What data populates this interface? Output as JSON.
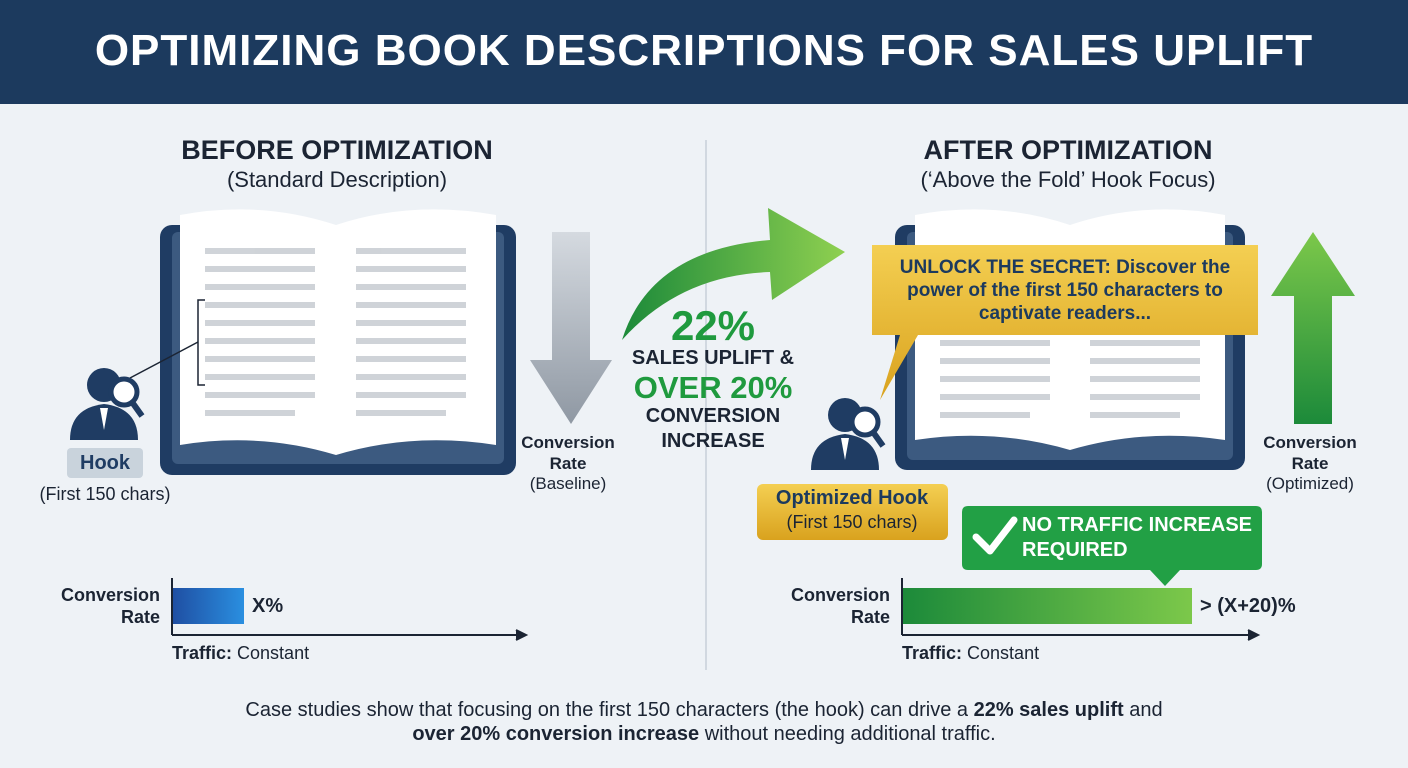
{
  "title": "OPTIMIZING BOOK DESCRIPTIONS FOR SALES UPLIFT",
  "before": {
    "heading": "BEFORE OPTIMIZATION",
    "subheading": "(Standard Description)",
    "hook_label": "Hook",
    "hook_note": "(First 150 chars)",
    "arrow_label": "Conversion Rate",
    "arrow_note": "(Baseline)",
    "chart": {
      "y_label": "Conversion Rate",
      "value_label": "X%",
      "x_label": "Traffic:",
      "x_value": "Constant"
    }
  },
  "center": {
    "uplift": "22%",
    "uplift_label": "SALES UPLIFT &",
    "conversion": "OVER 20%",
    "conversion_label": "CONVERSION INCREASE"
  },
  "after": {
    "heading": "AFTER OPTIMIZATION",
    "subheading": "(‘Above the Fold’ Hook Focus)",
    "callout": "UNLOCK THE SECRET: Discover the power of the first 150 characters to captivate readers...",
    "hook_label": "Optimized Hook",
    "hook_note": "(First 150 chars)",
    "arrow_label": "Conversion Rate",
    "arrow_note": "(Optimized)",
    "badge": "NO TRAFFIC INCREASE REQUIRED",
    "chart": {
      "y_label": "Conversion Rate",
      "value_label": "> (X+20)%",
      "x_label": "Traffic:",
      "x_value": "Constant"
    }
  },
  "footer": {
    "parts": [
      "Case studies show that focusing on the first 150 characters (the hook) can drive a ",
      "22% sales uplift",
      " and ",
      "over 20% conversion increase",
      " without needing additional traffic."
    ]
  }
}
